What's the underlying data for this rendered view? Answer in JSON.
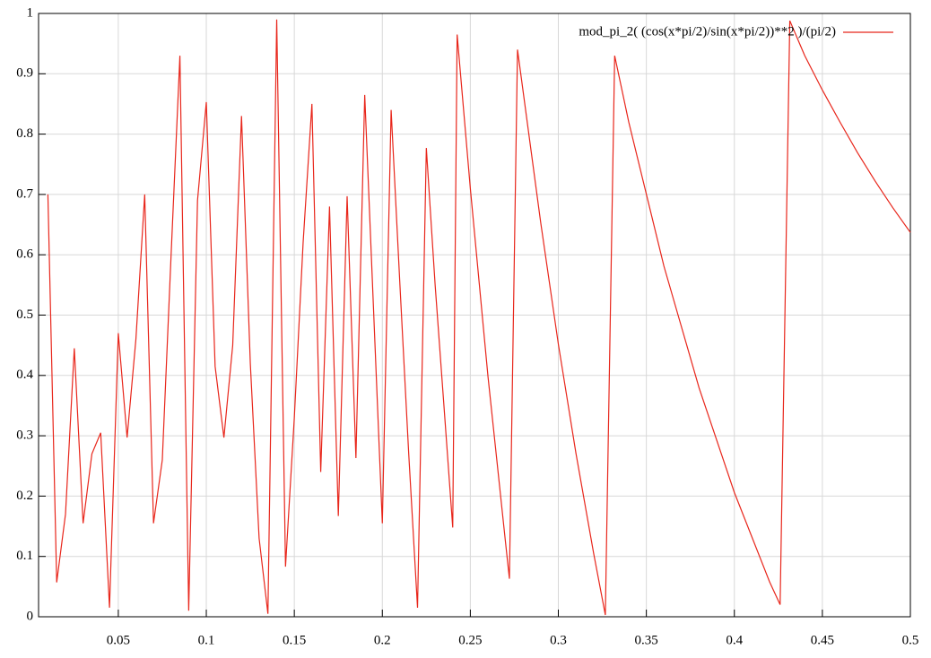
{
  "chart_data": {
    "type": "line",
    "x": [
      0.01,
      0.015,
      0.02,
      0.025,
      0.03,
      0.035,
      0.04,
      0.045,
      0.05,
      0.055,
      0.06,
      0.065,
      0.07,
      0.075,
      0.08,
      0.085,
      0.09,
      0.095,
      0.1,
      0.105,
      0.11,
      0.115,
      0.12,
      0.125,
      0.13,
      0.135,
      0.14,
      0.145,
      0.15,
      0.155,
      0.16,
      0.165,
      0.17,
      0.175,
      0.18,
      0.185,
      0.19,
      0.195,
      0.2,
      0.205,
      0.21,
      0.215,
      0.22,
      0.225,
      0.23,
      0.235,
      0.24,
      0.2425,
      0.25,
      0.26,
      0.27,
      0.2722,
      0.2768,
      0.29,
      0.3,
      0.31,
      0.32,
      0.3267,
      0.332,
      0.34,
      0.36,
      0.38,
      0.4,
      0.42,
      0.426,
      0.4315,
      0.44,
      0.45,
      0.46,
      0.47,
      0.48,
      0.49,
      0.5
    ],
    "series": [
      {
        "name": "mod_pi_2( (cos(x*pi/2)/sin(x*pi/2))**2 )/(pi/2)",
        "color": "#e8261b",
        "values": [
          0.7,
          0.057,
          0.17,
          0.445,
          0.155,
          0.27,
          0.305,
          0.015,
          0.47,
          0.297,
          0.46,
          0.7,
          0.155,
          0.26,
          0.6,
          0.93,
          0.01,
          0.69,
          0.853,
          0.415,
          0.297,
          0.45,
          0.83,
          0.42,
          0.13,
          0.005,
          0.99,
          0.083,
          0.33,
          0.62,
          0.85,
          0.24,
          0.68,
          0.167,
          0.697,
          0.263,
          0.865,
          0.51,
          0.155,
          0.84,
          0.55,
          0.27,
          0.015,
          0.777,
          0.55,
          0.35,
          0.148,
          0.965,
          0.71,
          0.399,
          0.123,
          0.063,
          0.94,
          0.653,
          0.452,
          0.271,
          0.106,
          0.003,
          0.93,
          0.82,
          0.581,
          0.379,
          0.206,
          0.058,
          0.02,
          0.988,
          0.93,
          0.873,
          0.82,
          0.769,
          0.722,
          0.678,
          0.637
        ]
      }
    ],
    "xlim": [
      0.0047,
      0.5
    ],
    "ylim": [
      0,
      1
    ],
    "xticks": [
      0.05,
      0.1,
      0.15,
      0.2,
      0.25,
      0.3,
      0.35,
      0.4,
      0.45,
      0.5
    ],
    "yticks": [
      0,
      0.1,
      0.2,
      0.3,
      0.4,
      0.5,
      0.6,
      0.7,
      0.8,
      0.9,
      1
    ],
    "grid": true,
    "legend": "top-right"
  }
}
